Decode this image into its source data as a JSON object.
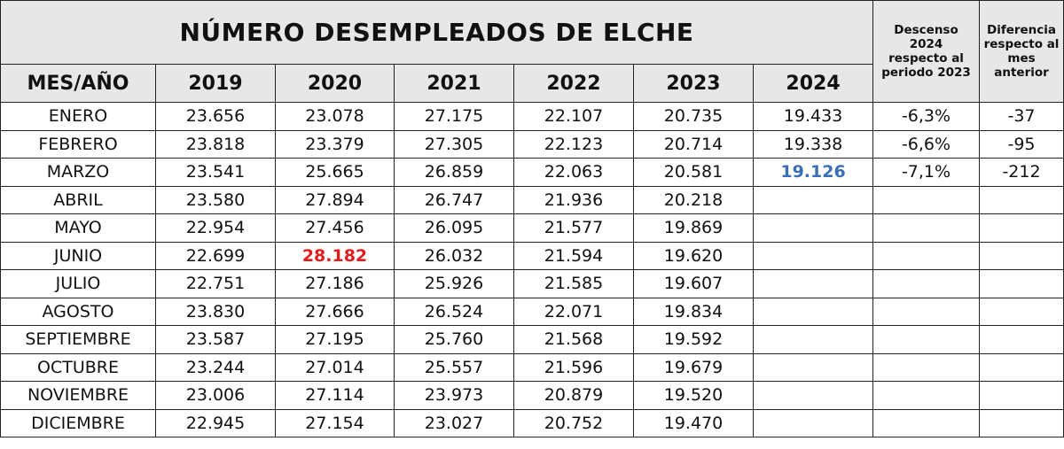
{
  "title": "NÚMERO DESEMPLEADOS DE ELCHE",
  "columns": [
    "MES/AÑO",
    "2019",
    "2020",
    "2021",
    "2022",
    "2023",
    "2024"
  ],
  "extra_columns": [
    "Descenso\n2024\nrespecto al\nperiodo 2023",
    "Diferencia\nrespecto al\nmes\nanterior"
  ],
  "rows": [
    [
      "ENERO",
      "23.656",
      "23.078",
      "27.175",
      "22.107",
      "20.735",
      "19.433",
      "-6,3%",
      "-37"
    ],
    [
      "FEBRERO",
      "23.818",
      "23.379",
      "27.305",
      "22.123",
      "20.714",
      "19.338",
      "-6,6%",
      "-95"
    ],
    [
      "MARZO",
      "23.541",
      "25.665",
      "26.859",
      "22.063",
      "20.581",
      "19.126",
      "-7,1%",
      "-212"
    ],
    [
      "ABRIL",
      "23.580",
      "27.894",
      "26.747",
      "21.936",
      "20.218"
    ],
    [
      "MAYO",
      "22.954",
      "27.456",
      "26.095",
      "21.577",
      "19.869"
    ],
    [
      "JUNIO",
      "22.699",
      "28.182",
      "26.032",
      "21.594",
      "19.620"
    ],
    [
      "JULIO",
      "22.751",
      "27.186",
      "25.926",
      "21.585",
      "19.607"
    ],
    [
      "AGOSTO",
      "23.830",
      "27.666",
      "26.524",
      "22.071",
      "19.834"
    ],
    [
      "SEPTIEMBRE",
      "23.587",
      "27.195",
      "25.760",
      "21.568",
      "19.592"
    ],
    [
      "OCTUBRE",
      "23.244",
      "27.014",
      "25.557",
      "21.596",
      "19.679"
    ],
    [
      "NOVIEMBRE",
      "23.006",
      "27.114",
      "23.973",
      "20.879",
      "19.520"
    ],
    [
      "DICIEMBRE",
      "22.945",
      "27.154",
      "23.027",
      "20.752",
      "19.470"
    ]
  ]
}
